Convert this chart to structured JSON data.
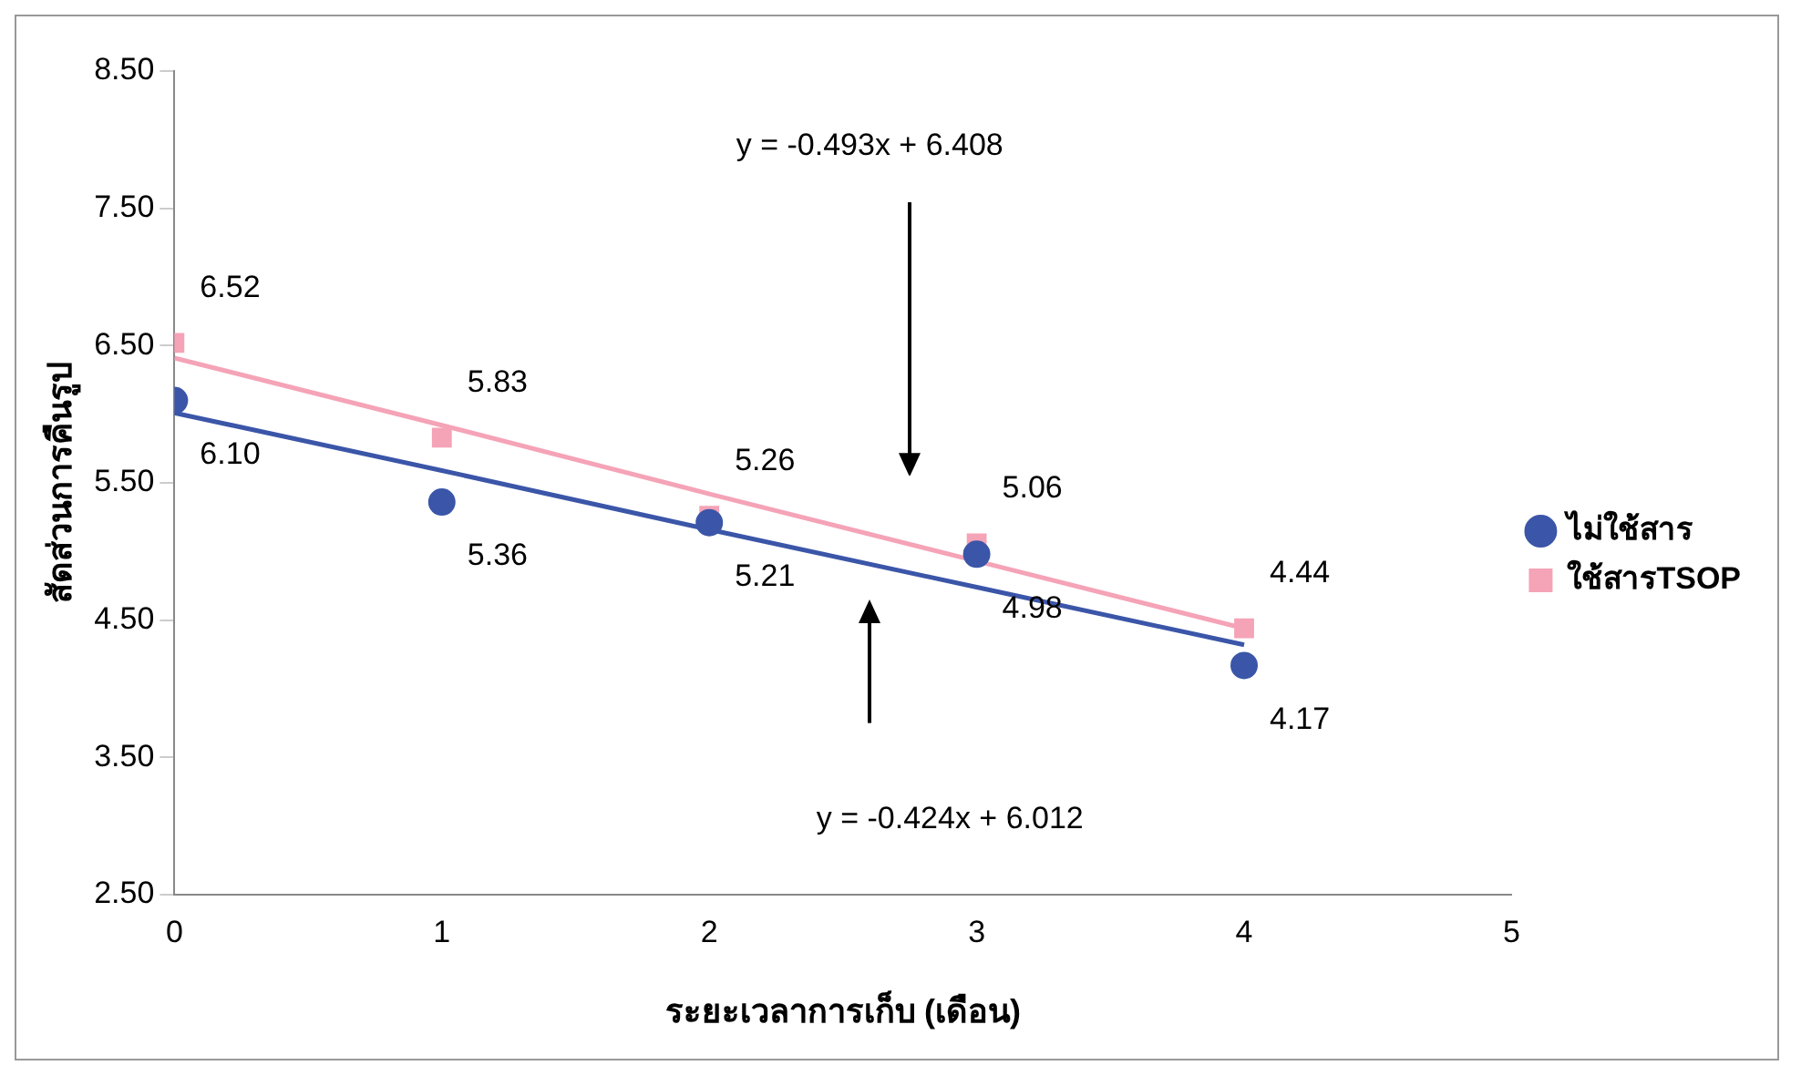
{
  "chart_data": {
    "type": "scatter",
    "xlabel": "ระยะเวลาการเก็บ (เดือน)",
    "ylabel": "สัดส่วนการคืนรูป",
    "x": [
      0,
      1,
      2,
      3,
      4
    ],
    "series": [
      {
        "name": "ไม่ใช้สาร",
        "color": "#3b56a8",
        "marker": "circle",
        "values": [
          6.1,
          5.36,
          5.21,
          4.98,
          4.17
        ],
        "value_labels": [
          "6.10",
          "5.36",
          "5.21",
          "4.98",
          "4.17"
        ]
      },
      {
        "name": "ใช้สารTSOP",
        "color": "#f5a3b7",
        "marker": "square",
        "values": [
          6.52,
          5.83,
          5.26,
          5.06,
          4.44
        ],
        "value_labels": [
          "6.52",
          "5.83",
          "5.26",
          "5.06",
          "4.44"
        ]
      },
      {
        "type": "line",
        "color": "#3b56a8",
        "marker": "none",
        "values": [
          6.01,
          5.59,
          5.16,
          4.74,
          4.32
        ]
      },
      {
        "type": "line",
        "color": "#f5a3b7",
        "marker": "none",
        "values": [
          6.41,
          5.92,
          5.42,
          4.93,
          4.44
        ]
      }
    ],
    "annotations": [
      "y = -0.493x + 6.408",
      "y = -0.424x + 6.012"
    ],
    "xlim": [
      0,
      5
    ],
    "xticks": [
      0,
      1,
      2,
      3,
      4,
      5
    ],
    "ylim": [
      2.5,
      8.5
    ],
    "yticks": [
      {
        "value": 2.5,
        "label": "2.50"
      },
      {
        "value": 3.5,
        "label": "3.50"
      },
      {
        "value": 4.5,
        "label": "4.50"
      },
      {
        "value": 5.5,
        "label": "5.50"
      },
      {
        "value": 6.5,
        "label": "6.50"
      },
      {
        "value": 7.5,
        "label": "7.50"
      },
      {
        "value": 8.5,
        "label": "8.50"
      }
    ],
    "grid": false,
    "legend": "right"
  }
}
